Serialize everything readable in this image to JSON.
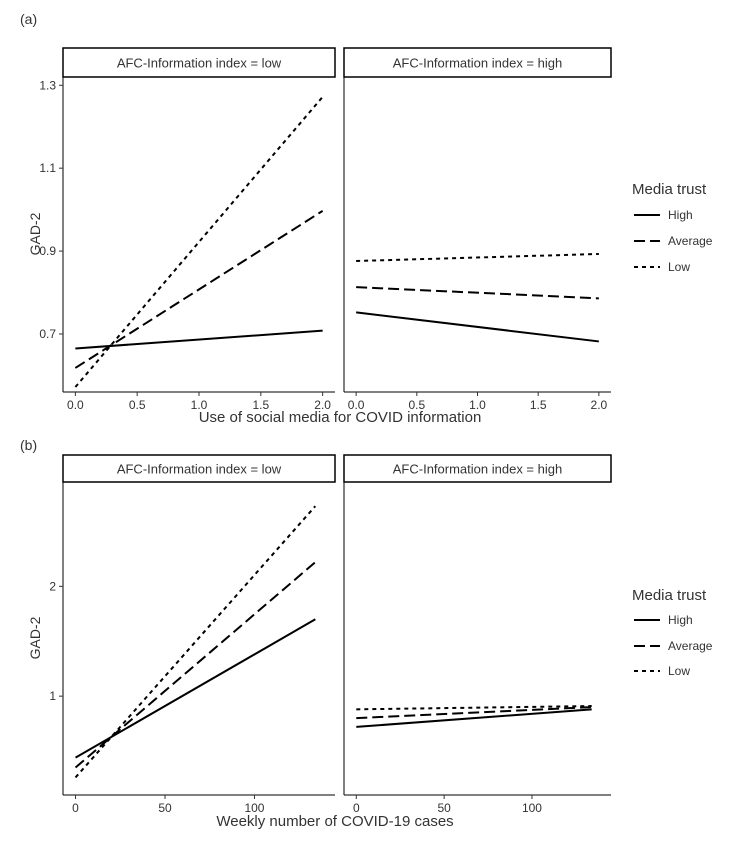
{
  "chart_data": [
    {
      "type": "line",
      "panel_label": "(a)",
      "facets": [
        "AFC-Information index = low",
        "AFC-Information index = high"
      ],
      "xlabel": "Use of social media for COVID information",
      "ylabel": "GAD-2",
      "xlim": [
        -0.1,
        2.1
      ],
      "ylim": [
        0.56,
        1.32
      ],
      "xticks": [
        "0.0",
        "0.5",
        "1.0",
        "1.5",
        "2.0"
      ],
      "yticks": [
        "0.7",
        "0.9",
        "1.1",
        "1.3"
      ],
      "legend": {
        "title": "Media trust",
        "position": "right",
        "entries": [
          "High",
          "Average",
          "Low"
        ]
      },
      "series": [
        {
          "name": "High",
          "dash": "solid",
          "low": {
            "x": [
              0,
              2
            ],
            "y": [
              0.665,
              0.708
            ]
          },
          "high": {
            "x": [
              0,
              2
            ],
            "y": [
              0.752,
              0.682
            ]
          }
        },
        {
          "name": "Average",
          "dash": "longdash",
          "low": {
            "x": [
              0,
              2
            ],
            "y": [
              0.618,
              0.997
            ]
          },
          "high": {
            "x": [
              0,
              2
            ],
            "y": [
              0.813,
              0.786
            ]
          }
        },
        {
          "name": "Low",
          "dash": "dotted",
          "low": {
            "x": [
              0,
              2
            ],
            "y": [
              0.572,
              1.272
            ]
          },
          "high": {
            "x": [
              0,
              2
            ],
            "y": [
              0.876,
              0.893
            ]
          }
        }
      ]
    },
    {
      "type": "line",
      "panel_label": "(b)",
      "facets": [
        "AFC-Information index = low",
        "AFC-Information index = high"
      ],
      "xlabel": "Weekly number of COVID-19 cases",
      "ylabel": "GAD-2",
      "xlim": [
        -7,
        145
      ],
      "ylim": [
        0.1,
        2.95
      ],
      "xticks": [
        "0",
        "50",
        "100"
      ],
      "yticks": [
        "1",
        "2"
      ],
      "legend": {
        "title": "Media trust",
        "position": "right",
        "entries": [
          "High",
          "Average",
          "Low"
        ]
      },
      "series": [
        {
          "name": "High",
          "dash": "solid",
          "low": {
            "x": [
              0,
              134
            ],
            "y": [
              0.44,
              1.7
            ]
          },
          "high": {
            "x": [
              0,
              134
            ],
            "y": [
              0.72,
              0.88
            ]
          }
        },
        {
          "name": "Average",
          "dash": "longdash",
          "low": {
            "x": [
              0,
              134
            ],
            "y": [
              0.35,
              2.22
            ]
          },
          "high": {
            "x": [
              0,
              134
            ],
            "y": [
              0.8,
              0.9
            ]
          }
        },
        {
          "name": "Low",
          "dash": "dotted",
          "low": {
            "x": [
              0,
              134
            ],
            "y": [
              0.26,
              2.73
            ]
          },
          "high": {
            "x": [
              0,
              134
            ],
            "y": [
              0.88,
              0.91
            ]
          }
        }
      ]
    }
  ]
}
